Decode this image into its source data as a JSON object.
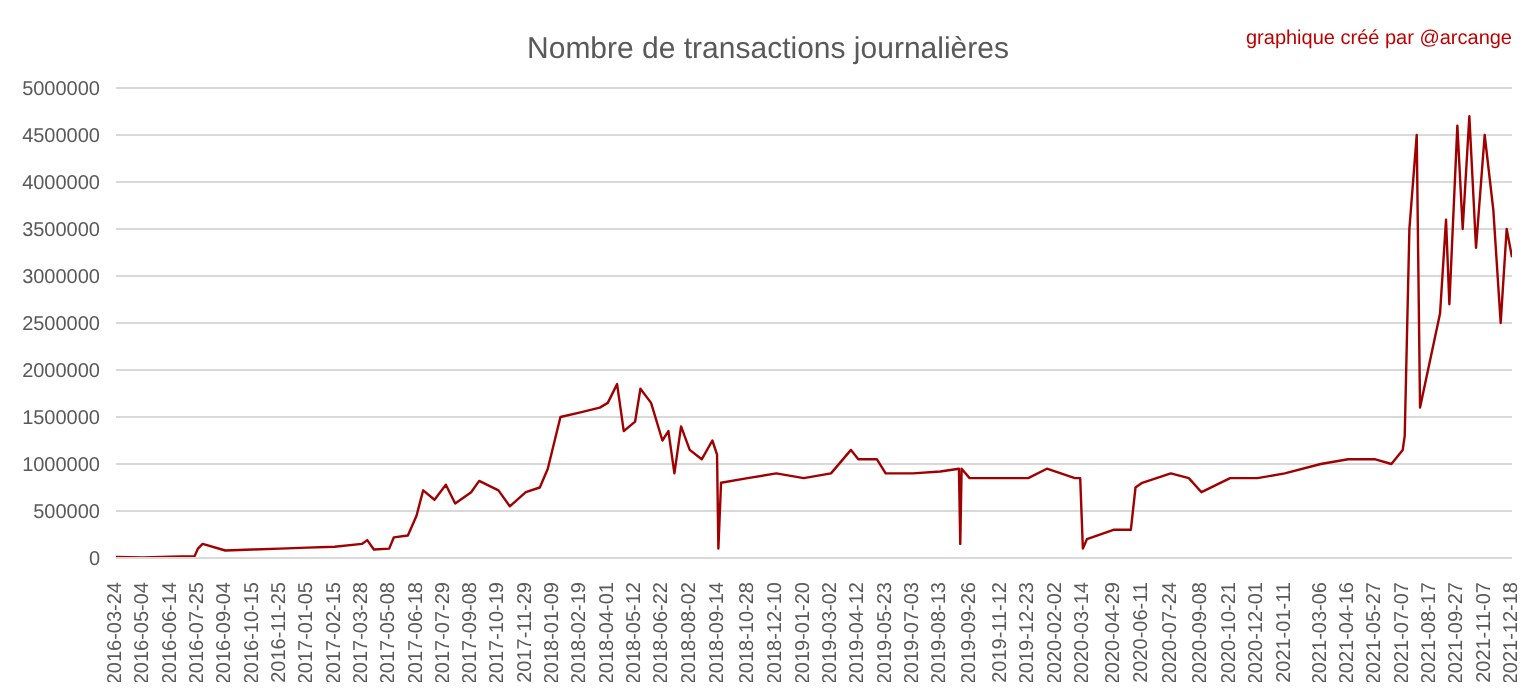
{
  "chart_data": {
    "type": "line",
    "title": "Nombre de transactions journalières",
    "annotations": [
      "graphique créé par @arcange"
    ],
    "x": [
      "2016-03-24",
      "2016-05-04",
      "2016-06-14",
      "2016-07-20",
      "2016-07-25",
      "2016-08-01",
      "2016-09-04",
      "2016-10-15",
      "2016-11-25",
      "2017-01-05",
      "2017-02-15",
      "2017-03-28",
      "2017-04-05",
      "2017-04-15",
      "2017-05-08",
      "2017-05-15",
      "2017-06-05",
      "2017-06-18",
      "2017-06-28",
      "2017-07-15",
      "2017-08-01",
      "2017-08-15",
      "2017-09-08",
      "2017-09-20",
      "2017-10-19",
      "2017-11-05",
      "2017-11-29",
      "2017-12-20",
      "2018-01-01",
      "2018-01-20",
      "2018-02-19",
      "2018-03-20",
      "2018-04-01",
      "2018-04-15",
      "2018-04-25",
      "2018-05-12",
      "2018-05-20",
      "2018-06-05",
      "2018-06-22",
      "2018-07-01",
      "2018-07-10",
      "2018-07-20",
      "2018-08-02",
      "2018-08-20",
      "2018-09-05",
      "2018-09-12",
      "2018-09-14",
      "2018-09-18",
      "2018-10-28",
      "2018-12-10",
      "2019-01-20",
      "2019-03-02",
      "2019-04-01",
      "2019-04-12",
      "2019-05-10",
      "2019-05-23",
      "2019-07-03",
      "2019-08-13",
      "2019-09-10",
      "2019-09-12",
      "2019-09-14",
      "2019-09-26",
      "2019-11-12",
      "2019-12-23",
      "2020-01-20",
      "2020-02-10",
      "2020-03-02",
      "2020-03-10",
      "2020-03-14",
      "2020-03-20",
      "2020-04-29",
      "2020-05-25",
      "2020-06-01",
      "2020-06-11",
      "2020-07-24",
      "2020-08-20",
      "2020-09-08",
      "2020-10-21",
      "2020-12-01",
      "2021-01-11",
      "2021-03-06",
      "2021-04-16",
      "2021-05-27",
      "2021-06-20",
      "2021-07-07",
      "2021-07-10",
      "2021-07-17",
      "2021-07-28",
      "2021-08-02",
      "2021-08-17",
      "2021-09-01",
      "2021-09-10",
      "2021-09-15",
      "2021-09-27",
      "2021-10-05",
      "2021-10-15",
      "2021-10-25",
      "2021-11-07",
      "2021-11-20",
      "2021-12-01",
      "2021-12-10",
      "2021-12-18"
    ],
    "series": [
      {
        "color": "#a00000",
        "values": [
          10000,
          5000,
          15000,
          20000,
          100000,
          150000,
          80000,
          90000,
          100000,
          110000,
          120000,
          150000,
          190000,
          90000,
          100000,
          220000,
          240000,
          450000,
          720000,
          620000,
          780000,
          580000,
          700000,
          820000,
          720000,
          550000,
          700000,
          750000,
          950000,
          1500000,
          1550000,
          1600000,
          1650000,
          1850000,
          1350000,
          1450000,
          1800000,
          1650000,
          1250000,
          1350000,
          900000,
          1400000,
          1150000,
          1050000,
          1250000,
          1100000,
          100000,
          800000,
          850000,
          900000,
          850000,
          900000,
          1150000,
          1050000,
          1050000,
          900000,
          900000,
          920000,
          950000,
          150000,
          950000,
          850000,
          850000,
          850000,
          950000,
          900000,
          850000,
          850000,
          100000,
          200000,
          300000,
          300000,
          750000,
          800000,
          900000,
          850000,
          700000,
          850000,
          850000,
          900000,
          1000000,
          1050000,
          1050000,
          1000000,
          1150000,
          1300000,
          3500000,
          4500000,
          1600000,
          2100000,
          2600000,
          3600000,
          2700000,
          4600000,
          3500000,
          4700000,
          3300000,
          4500000,
          3700000,
          2500000,
          3500000,
          3200000
        ]
      }
    ],
    "xlim": [
      "2016-03-24",
      "2021-12-18"
    ],
    "xticks": [
      "2016-03-24",
      "2016-05-04",
      "2016-06-14",
      "2016-07-25",
      "2016-09-04",
      "2016-10-15",
      "2016-11-25",
      "2017-01-05",
      "2017-02-15",
      "2017-03-28",
      "2017-05-08",
      "2017-06-18",
      "2017-07-29",
      "2017-09-08",
      "2017-10-19",
      "2017-11-29",
      "2018-01-09",
      "2018-02-19",
      "2018-04-01",
      "2018-05-12",
      "2018-06-22",
      "2018-08-02",
      "2018-09-14",
      "2018-10-28",
      "2018-12-10",
      "2019-01-20",
      "2019-03-02",
      "2019-04-12",
      "2019-05-23",
      "2019-07-03",
      "2019-08-13",
      "2019-09-26",
      "2019-11-12",
      "2019-12-23",
      "2020-02-02",
      "2020-03-14",
      "2020-04-29",
      "2020-06-11",
      "2020-07-24",
      "2020-09-08",
      "2020-10-21",
      "2020-12-01",
      "2021-01-11",
      "2021-03-06",
      "2021-04-16",
      "2021-05-27",
      "2021-07-07",
      "2021-08-17",
      "2021-09-27",
      "2021-11-07",
      "2021-12-18"
    ],
    "ylim": [
      0,
      5000000
    ],
    "yticks": [
      0,
      500000,
      1000000,
      1500000,
      2000000,
      2500000,
      3000000,
      3500000,
      4000000,
      4500000,
      5000000
    ],
    "grid": "y",
    "legend": false,
    "marker": "none",
    "line_style": "solid"
  }
}
